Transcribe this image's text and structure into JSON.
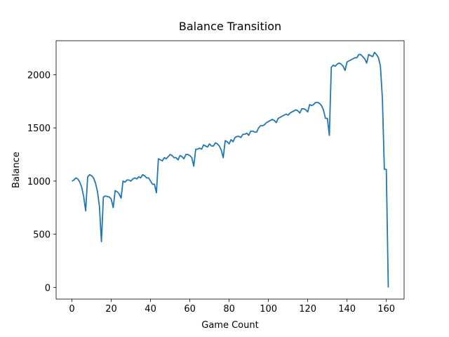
{
  "chart_data": {
    "type": "line",
    "title": "Balance Transition",
    "x_label": "Game Count",
    "y_label": "Balance",
    "x": [
      0,
      1,
      2,
      3,
      4,
      5,
      6,
      7,
      8,
      9,
      10,
      11,
      12,
      13,
      14,
      15,
      16,
      17,
      18,
      19,
      20,
      21,
      22,
      23,
      24,
      25,
      26,
      27,
      28,
      29,
      30,
      31,
      32,
      33,
      34,
      35,
      36,
      37,
      38,
      39,
      40,
      41,
      42,
      43,
      44,
      45,
      46,
      47,
      48,
      49,
      50,
      51,
      52,
      53,
      54,
      55,
      56,
      57,
      58,
      59,
      60,
      61,
      62,
      63,
      64,
      65,
      66,
      67,
      68,
      69,
      70,
      71,
      72,
      73,
      74,
      75,
      76,
      77,
      78,
      79,
      80,
      81,
      82,
      83,
      84,
      85,
      86,
      87,
      88,
      89,
      90,
      91,
      92,
      93,
      94,
      95,
      96,
      97,
      98,
      99,
      100,
      101,
      102,
      103,
      104,
      105,
      106,
      107,
      108,
      109,
      110,
      111,
      112,
      113,
      114,
      115,
      116,
      117,
      118,
      119,
      120,
      121,
      122,
      123,
      124,
      125,
      126,
      127,
      128,
      129,
      130,
      131,
      132,
      133,
      134,
      135,
      136,
      137,
      138,
      139,
      140,
      141,
      142,
      143,
      144,
      145,
      146,
      147,
      148,
      149,
      150,
      151,
      152,
      153,
      154,
      155,
      156,
      157,
      158,
      159,
      160,
      161
    ],
    "series": [
      {
        "color": "#1f77b4",
        "values": [
          1000,
          1010,
          1030,
          1020,
          990,
          940,
          850,
          720,
          1040,
          1060,
          1050,
          1030,
          980,
          900,
          760,
          430,
          850,
          860,
          855,
          850,
          830,
          750,
          910,
          900,
          880,
          840,
          1000,
          990,
          1010,
          1010,
          1000,
          1020,
          1030,
          1020,
          1040,
          1030,
          1060,
          1050,
          1030,
          1030,
          1000,
          970,
          970,
          890,
          1210,
          1200,
          1190,
          1220,
          1210,
          1230,
          1250,
          1240,
          1220,
          1220,
          1200,
          1240,
          1230,
          1210,
          1250,
          1250,
          1240,
          1220,
          1140,
          1300,
          1300,
          1310,
          1300,
          1340,
          1330,
          1320,
          1350,
          1330,
          1330,
          1360,
          1350,
          1330,
          1290,
          1220,
          1380,
          1370,
          1350,
          1390,
          1370,
          1410,
          1420,
          1420,
          1410,
          1440,
          1440,
          1450,
          1430,
          1470,
          1470,
          1460,
          1460,
          1500,
          1520,
          1520,
          1530,
          1550,
          1560,
          1570,
          1580,
          1570,
          1550,
          1590,
          1600,
          1610,
          1620,
          1630,
          1620,
          1640,
          1650,
          1660,
          1670,
          1660,
          1640,
          1680,
          1680,
          1670,
          1650,
          1720,
          1710,
          1720,
          1740,
          1740,
          1730,
          1710,
          1670,
          1590,
          1590,
          1430,
          2070,
          2090,
          2080,
          2100,
          2110,
          2100,
          2080,
          2040,
          2120,
          2130,
          2140,
          2150,
          2160,
          2160,
          2190,
          2190,
          2170,
          2150,
          2110,
          2190,
          2180,
          2170,
          2210,
          2190,
          2160,
          2080,
          1780,
          1110,
          1110,
          0
        ]
      }
    ],
    "xlim": [
      -8.05,
      169.05
    ],
    "ylim": [
      -110,
      2320
    ],
    "xticks": [
      0,
      20,
      40,
      60,
      80,
      100,
      120,
      140,
      160
    ],
    "yticks": [
      0,
      500,
      1000,
      1500,
      2000
    ],
    "grid": false
  }
}
